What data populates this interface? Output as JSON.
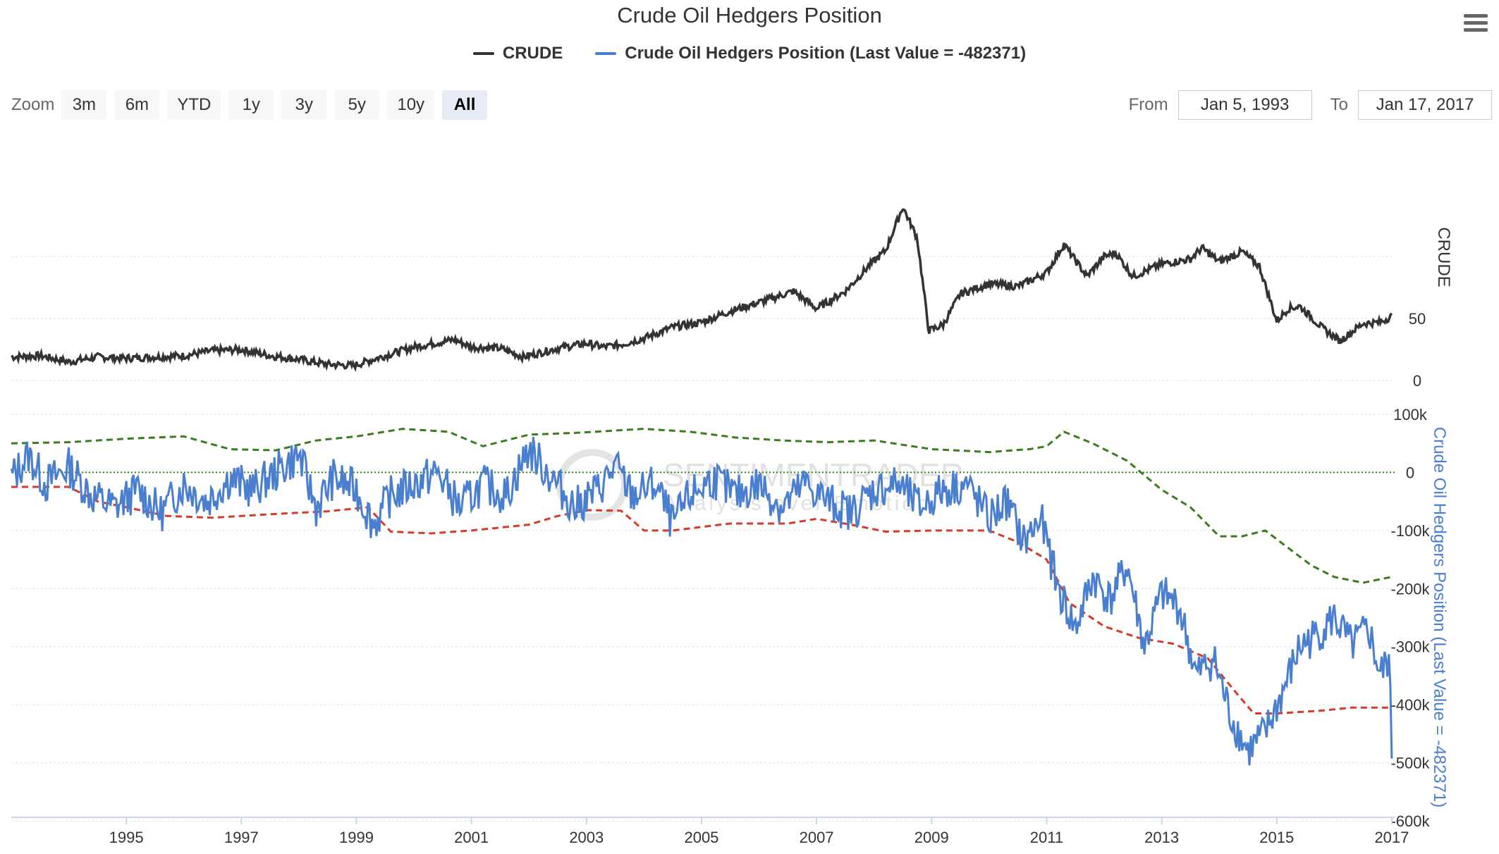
{
  "title": "Crude Oil Hedgers Position",
  "legend": {
    "crude_label": "CRUDE",
    "hedgers_label": "Crude Oil Hedgers Position (Last Value = -482371)"
  },
  "zoom": {
    "label": "Zoom",
    "buttons": [
      "3m",
      "6m",
      "YTD",
      "1y",
      "3y",
      "5y",
      "10y",
      "All"
    ],
    "active": "All"
  },
  "range": {
    "from_label": "From",
    "from_value": "Jan 5, 1993",
    "to_label": "To",
    "to_value": "Jan 17, 2017"
  },
  "icons": {
    "menu": "hamburger-menu-icon"
  },
  "colors": {
    "crude": "#333333",
    "hedgers": "#4a7fd0",
    "upper_band": "#3a7d1e",
    "lower_band": "#d63a2a",
    "zero_line": "#3a7d1e",
    "grid": "#e0e0e0"
  },
  "watermark": {
    "line1": "SENTIMENTRADER",
    "line2": "Analysis over Emotion"
  },
  "chart_data": {
    "type": "line",
    "title": "Crude Oil Hedgers Position",
    "x_range": [
      1993.0,
      2017.05
    ],
    "x_ticks": [
      "1995",
      "1997",
      "1999",
      "2001",
      "2003",
      "2005",
      "2007",
      "2009",
      "2011",
      "2013",
      "2015",
      "2017"
    ],
    "panels": [
      {
        "name": "CRUDE",
        "ylabel": "CRUDE",
        "ylim": [
          0,
          145
        ],
        "y_ticks": [
          "0",
          "50"
        ],
        "series": [
          {
            "name": "CRUDE",
            "x": [
              1993.0,
              1993.5,
              1994.0,
              1994.5,
              1995.0,
              1995.5,
              1996.0,
              1996.5,
              1997.0,
              1997.5,
              1998.0,
              1998.5,
              1998.95,
              1999.5,
              2000.0,
              2000.7,
              2001.0,
              2001.5,
              2001.9,
              2002.5,
              2003.0,
              2003.3,
              2003.6,
              2004.0,
              2004.5,
              2005.0,
              2005.5,
              2006.0,
              2006.6,
              2007.0,
              2007.5,
              2007.9,
              2008.2,
              2008.5,
              2008.75,
              2008.95,
              2009.2,
              2009.5,
              2010.0,
              2010.5,
              2011.0,
              2011.3,
              2011.7,
              2012.0,
              2012.2,
              2012.5,
              2013.0,
              2013.5,
              2013.7,
              2014.0,
              2014.4,
              2014.7,
              2015.0,
              2015.2,
              2015.4,
              2015.8,
              2016.1,
              2016.5,
              2016.8,
              2017.0
            ],
            "values": [
              19,
              20,
              15,
              19,
              18,
              19,
              20,
              24,
              25,
              20,
              17,
              13,
              12,
              20,
              27,
              33,
              27,
              26,
              19,
              26,
              30,
              27,
              29,
              34,
              43,
              47,
              56,
              63,
              72,
              58,
              72,
              92,
              105,
              140,
              115,
              40,
              45,
              70,
              78,
              76,
              87,
              110,
              84,
              100,
              103,
              84,
              94,
              98,
              107,
              96,
              104,
              92,
              48,
              58,
              60,
              42,
              32,
              46,
              47,
              52
            ]
          }
        ]
      },
      {
        "name": "Crude Oil Hedgers Position",
        "ylabel": "Crude Oil Hedgers Position (Last Value = -482371)",
        "ylim": [
          -600000,
          100000
        ],
        "y_ticks": [
          "100k",
          "0",
          "-100k",
          "-200k",
          "-300k",
          "-400k",
          "-500k",
          "-600k"
        ],
        "series": [
          {
            "name": "Crude Oil Hedgers Position",
            "x": [
              1993.0,
              1993.3,
              1993.6,
              1994.0,
              1994.4,
              1994.8,
              1995.2,
              1995.6,
              1996.0,
              1996.4,
              1996.8,
              1997.2,
              1997.6,
              1998.0,
              1998.3,
              1998.6,
              1999.0,
              1999.3,
              1999.6,
              2000.0,
              2000.4,
              2000.8,
              2001.2,
              2001.6,
              2002.0,
              2002.4,
              2002.8,
              2003.2,
              2003.5,
              2003.8,
              2004.2,
              2004.5,
              2004.8,
              2005.2,
              2005.6,
              2006.0,
              2006.4,
              2006.8,
              2007.2,
              2007.6,
              2008.0,
              2008.4,
              2008.8,
              2009.2,
              2009.6,
              2010.0,
              2010.3,
              2010.6,
              2010.9,
              2011.2,
              2011.5,
              2011.8,
              2012.1,
              2012.4,
              2012.7,
              2013.0,
              2013.3,
              2013.6,
              2013.9,
              2014.2,
              2014.5,
              2014.8,
              2015.1,
              2015.4,
              2015.7,
              2016.0,
              2016.3,
              2016.6,
              2016.8,
              2016.95,
              2017.0
            ],
            "values": [
              -10000,
              30000,
              -20000,
              10000,
              -40000,
              -60000,
              -30000,
              -70000,
              -20000,
              -50000,
              -10000,
              -30000,
              0,
              30000,
              -60000,
              -10000,
              -30000,
              -90000,
              -40000,
              -20000,
              0,
              -60000,
              -20000,
              -40000,
              40000,
              -10000,
              -60000,
              -30000,
              10000,
              -40000,
              -20000,
              -90000,
              -40000,
              -10000,
              -40000,
              -20000,
              -60000,
              -20000,
              -50000,
              -70000,
              -30000,
              -20000,
              -60000,
              -30000,
              -20000,
              -80000,
              -50000,
              -120000,
              -80000,
              -200000,
              -270000,
              -180000,
              -220000,
              -160000,
              -300000,
              -210000,
              -230000,
              -350000,
              -320000,
              -420000,
              -480000,
              -450000,
              -380000,
              -300000,
              -280000,
              -250000,
              -300000,
              -270000,
              -350000,
              -320000,
              -482371
            ]
          },
          {
            "name": "Upper band",
            "x": [
              1993.0,
              1994.0,
              1995.0,
              1996.0,
              1996.8,
              1997.6,
              1998.3,
              1999.0,
              1999.8,
              2000.6,
              2001.2,
              2002.0,
              2002.8,
              2004.0,
              2004.8,
              2005.6,
              2006.4,
              2007.2,
              2008.0,
              2009.0,
              2010.0,
              2010.7,
              2011.0,
              2011.3,
              2011.8,
              2012.4,
              2013.0,
              2013.5,
              2014.0,
              2014.4,
              2014.8,
              2015.2,
              2015.6,
              2016.0,
              2016.5,
              2017.0
            ],
            "values": [
              50000,
              52000,
              58000,
              62000,
              40000,
              38000,
              55000,
              62000,
              75000,
              70000,
              45000,
              65000,
              68000,
              75000,
              70000,
              60000,
              55000,
              52000,
              55000,
              40000,
              35000,
              40000,
              45000,
              70000,
              50000,
              20000,
              -30000,
              -60000,
              -110000,
              -110000,
              -100000,
              -130000,
              -160000,
              -180000,
              -190000,
              -180000
            ]
          },
          {
            "name": "Lower band",
            "x": [
              1993.0,
              1994.0,
              1994.5,
              1995.0,
              1995.7,
              1996.5,
              1997.5,
              1998.5,
              1999.2,
              1999.6,
              2000.3,
              2001.0,
              2002.0,
              2002.5,
              2003.0,
              2003.6,
              2004.0,
              2004.5,
              2005.5,
              2006.5,
              2007.0,
              2007.6,
              2008.2,
              2009.0,
              2010.0,
              2010.5,
              2011.0,
              2011.4,
              2012.0,
              2012.6,
              2013.2,
              2013.8,
              2014.3,
              2014.6,
              2015.0,
              2015.8,
              2016.3,
              2017.0
            ],
            "values": [
              -25000,
              -25000,
              -50000,
              -60000,
              -75000,
              -78000,
              -72000,
              -67000,
              -60000,
              -102000,
              -105000,
              -100000,
              -90000,
              -75000,
              -65000,
              -66000,
              -100000,
              -100000,
              -88000,
              -88000,
              -80000,
              -90000,
              -102000,
              -100000,
              -100000,
              -120000,
              -150000,
              -225000,
              -265000,
              -285000,
              -295000,
              -320000,
              -380000,
              -415000,
              -415000,
              -410000,
              -405000,
              -405000
            ]
          },
          {
            "name": "Zero line",
            "x": [
              1993.0,
              2017.05
            ],
            "values": [
              0,
              0
            ]
          }
        ]
      }
    ]
  }
}
